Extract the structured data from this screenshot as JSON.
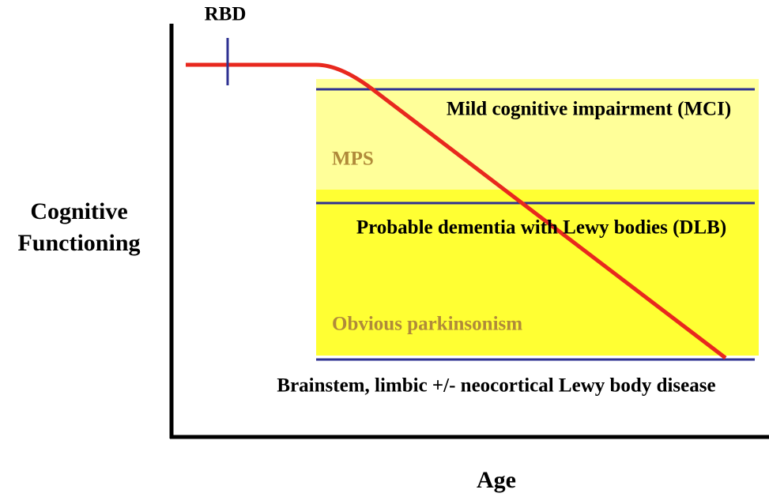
{
  "marker_label": "RBD",
  "y_axis_label": [
    "Cognitive",
    "Functioning"
  ],
  "x_axis_label": "Age",
  "zones": [
    {
      "label": "Mild cognitive impairment (MCI)",
      "note": "MPS"
    },
    {
      "label": "Probable dementia with Lewy bodies (DLB)",
      "note": "Obvious parkinsonism"
    }
  ],
  "baseline_label": "Brainstem, limbic +/- neocortical Lewy body disease"
}
